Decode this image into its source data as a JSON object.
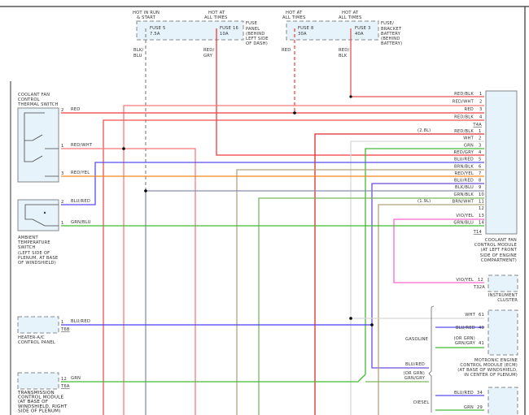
{
  "fuses": {
    "hot_run_start": [
      "HOT IN RUN",
      "& START"
    ],
    "hot_all_1": [
      "HOT AT",
      "ALL TIMES"
    ],
    "hot_all_2": [
      "HOT AT",
      "ALL TIMES"
    ],
    "hot_all_3": [
      "HOT AT",
      "ALL TIMES"
    ],
    "fuse5": [
      "FUSE 5",
      "7.5A"
    ],
    "fuse16": [
      "FUSE 16",
      "10A"
    ],
    "fuse8": [
      "FUSE 8",
      "30A"
    ],
    "fuse3": [
      "FUSE 3",
      "40A"
    ],
    "fuse_panel": [
      "FUSE",
      "PANEL",
      "(BEHIND",
      "LEFT SIDE",
      "OF DASH)"
    ],
    "fuse_bracket": [
      "FUSE/",
      "BRACKET",
      "BATTERY",
      "(BEHIND",
      "BATTERY)"
    ],
    "wire_blk_blu": [
      "BLK/",
      "BLU"
    ],
    "wire_red_gry": [
      "RED/",
      "GRY"
    ],
    "wire_red": "RED",
    "wire_red_blk": [
      "RED/",
      "BLK"
    ]
  },
  "components": {
    "coolant_switch": [
      "COOLANT FAN",
      "CONTROL",
      "THERMAL SWITCH"
    ],
    "ambient_switch": [
      "AMBIENT",
      "TEMPERATURE",
      "SWITCH",
      "(LEFT SIDE OF",
      "PLENUM, AT BASE",
      "OF WINDSHIELD)"
    ],
    "coolant_module": [
      "COOLANT FAN",
      "CONTROL MODULE",
      "(AT LEFT FRONT",
      "SIDE OF ENGINE",
      "COMPARTMENT)"
    ],
    "instrument_cluster": [
      "INSTRUMENT",
      "CLUSTER"
    ],
    "ecm": [
      "MOTRONIC ENGINE",
      "CONTROL MODULE (ECM)",
      "(AT BASE OF WINDSHIELD,",
      "IN CENTER OF PLENUM)"
    ],
    "heater_panel": [
      "HEATER-A/C",
      "CONTROL PANEL"
    ],
    "transmission": [
      "TRANSMISSION",
      "CONTROL MODULE",
      "(AT BASE OF",
      "WINDSHIELD, RIGHT",
      "SIDE OF PLENUM)"
    ]
  },
  "left_pins": {
    "cs2": {
      "pin": "2",
      "wire": "RED"
    },
    "cs1": {
      "pin": "1",
      "wire": "RED/WHT"
    },
    "cs3": {
      "pin": "3",
      "wire": "RED/YEL"
    },
    "as2": {
      "pin": "2",
      "wire": "BLU/RED"
    },
    "as1": {
      "pin": "1",
      "wire": "GRN/BLU"
    },
    "hp1": {
      "pin": "1",
      "wire": "BLU/RED",
      "conn": "T6B"
    },
    "tc12": {
      "pin": "12",
      "wire": "GRN",
      "conn": "T6A"
    }
  },
  "t4a": {
    "conn": "T4A",
    "pins": [
      {
        "wire": "RED/BLK",
        "pin": "1"
      },
      {
        "wire": "RED/WHT",
        "pin": "2"
      },
      {
        "wire": "RED",
        "pin": "3"
      },
      {
        "wire": "RED/BLK",
        "pin": "4"
      }
    ]
  },
  "t14": {
    "conn": "T14",
    "note_28": "(2.8L)",
    "note_19": "(1.9L)",
    "pins": [
      {
        "wire": "RED/BLK",
        "pin": "1"
      },
      {
        "wire": "WHT",
        "pin": "2"
      },
      {
        "wire": "GRN",
        "pin": "3"
      },
      {
        "wire": "RED/GRY",
        "pin": "4"
      },
      {
        "wire": "BLU/RED",
        "pin": "5"
      },
      {
        "wire": "BRN/BLK",
        "pin": "6"
      },
      {
        "wire": "RED/YEL",
        "pin": "7"
      },
      {
        "wire": "BLU/RED",
        "pin": "8"
      },
      {
        "wire": "BLK/BLU",
        "pin": "9"
      },
      {
        "wire": "GRN/BLK",
        "pin": "10"
      },
      {
        "wire": "BRN/WHT",
        "pin": "11"
      },
      {
        "wire": "",
        "pin": "12"
      },
      {
        "wire": "VIO/YEL",
        "pin": "13"
      },
      {
        "wire": "GRN/BLU",
        "pin": "14"
      }
    ]
  },
  "cluster_pin": {
    "wire": "VIO/YEL",
    "pin": "12",
    "conn": "T32A"
  },
  "ecm_pins": {
    "wht": {
      "wire": "WHT",
      "pin": "61"
    },
    "gas_label": "GASOLINE",
    "diesel_label": "DIESEL",
    "blu40": {
      "wire": "BLU/RED",
      "pin": "40"
    },
    "grn41": {
      "alt": "(OR GRN)",
      "wire": "GRN/GRY",
      "pin": "41"
    },
    "left_blu": "BLU/RED",
    "left_grn_alt": "(OR GRN)",
    "left_grn": "GRN/GRY",
    "blu34": {
      "wire": "BLU/RED",
      "pin": "34"
    },
    "grn29": {
      "wire": "GRN",
      "pin": "29"
    }
  },
  "colors": {
    "red": "#f03a3a",
    "red_wht": "#f77b7b",
    "red_yel": "#f58a1f",
    "green": "#45b935",
    "blue": "#5a4cf0",
    "tan": "#b4a27c",
    "grey_blue": "#8a8fb0",
    "white": "#d8d8d8",
    "pink": "#ff66cc",
    "box_fill": "#e6f3fb"
  }
}
